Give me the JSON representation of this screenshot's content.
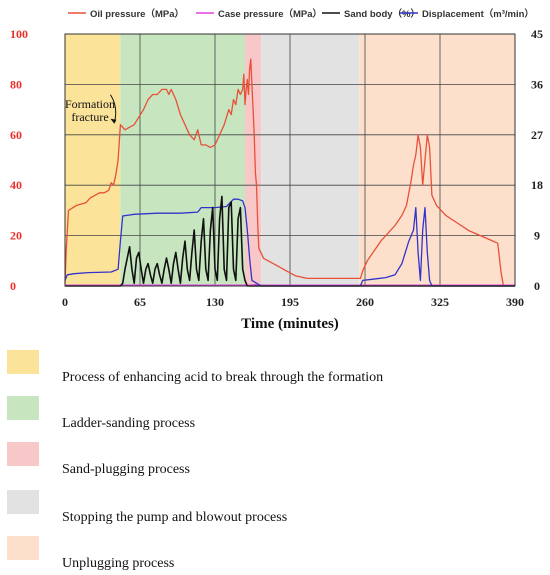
{
  "chart_data": {
    "type": "line",
    "xlabel": "Time (minutes)",
    "xlim": [
      0,
      390
    ],
    "x_ticks": [
      "0",
      "65",
      "130",
      "195",
      "260",
      "325",
      "390"
    ],
    "y_left_lim": [
      0,
      100
    ],
    "y_left_ticks": [
      "0",
      "20",
      "40",
      "60",
      "80",
      "100"
    ],
    "y_right_lim": [
      0,
      45
    ],
    "y_right_ticks": [
      "0",
      "9",
      "18",
      "27",
      "36",
      "45"
    ],
    "grid": true,
    "legend_placement": "top",
    "legend": [
      {
        "label": "Oil pressure（MPa）",
        "color": "#e8503a",
        "axis": "left"
      },
      {
        "label": "Case pressure（MPa）",
        "color": "#e040e0",
        "axis": "left"
      },
      {
        "label": "Sand body（%）",
        "color": "#111111",
        "axis": "right"
      },
      {
        "label": "Displacement（m³/min）",
        "color": "#3333cc",
        "axis": "right"
      }
    ],
    "annotation": {
      "text_lines": [
        "Formation",
        "fracture"
      ],
      "point": [
        48,
        64
      ]
    },
    "phases": [
      {
        "label": "Process of enhancing acid to break through the formation",
        "x_start": 0,
        "x_end": 48,
        "color": "#fbe49a"
      },
      {
        "label": "Ladder-sanding process",
        "x_start": 48,
        "x_end": 156,
        "color": "#c7e6c0"
      },
      {
        "label": "Sand-plugging process",
        "x_start": 156,
        "x_end": 170,
        "color": "#f8c8c8"
      },
      {
        "label": "Stopping the pump and blowout process",
        "x_start": 170,
        "x_end": 255,
        "color": "#e2e2e2"
      },
      {
        "label": "Unplugging process",
        "x_start": 255,
        "x_end": 390,
        "color": "#fde0cc"
      }
    ],
    "series": [
      {
        "name": "Oil pressure（MPa）",
        "axis": "left",
        "points": [
          [
            0,
            1
          ],
          [
            1,
            14
          ],
          [
            3,
            30
          ],
          [
            10,
            32
          ],
          [
            18,
            33
          ],
          [
            22,
            35
          ],
          [
            26,
            36
          ],
          [
            30,
            37
          ],
          [
            34,
            37
          ],
          [
            38,
            38
          ],
          [
            40,
            41
          ],
          [
            42,
            40
          ],
          [
            44,
            44
          ],
          [
            46,
            50
          ],
          [
            48,
            64
          ],
          [
            52,
            62
          ],
          [
            56,
            63
          ],
          [
            60,
            64
          ],
          [
            64,
            67
          ],
          [
            68,
            70
          ],
          [
            72,
            74
          ],
          [
            76,
            76
          ],
          [
            80,
            76
          ],
          [
            84,
            78
          ],
          [
            88,
            78
          ],
          [
            90,
            76
          ],
          [
            92,
            78
          ],
          [
            96,
            74
          ],
          [
            100,
            68
          ],
          [
            104,
            64
          ],
          [
            108,
            60
          ],
          [
            112,
            58
          ],
          [
            115,
            62
          ],
          [
            118,
            56
          ],
          [
            122,
            56
          ],
          [
            126,
            55
          ],
          [
            130,
            56
          ],
          [
            134,
            60
          ],
          [
            138,
            64
          ],
          [
            142,
            70
          ],
          [
            144,
            68
          ],
          [
            146,
            74
          ],
          [
            148,
            72
          ],
          [
            150,
            78
          ],
          [
            152,
            76
          ],
          [
            154,
            78
          ],
          [
            155,
            84
          ],
          [
            156,
            72
          ],
          [
            157,
            78
          ],
          [
            158,
            82
          ],
          [
            159,
            76
          ],
          [
            160,
            86
          ],
          [
            161,
            90
          ],
          [
            162,
            80
          ],
          [
            163,
            70
          ],
          [
            164,
            60
          ],
          [
            165,
            45
          ],
          [
            166,
            40
          ],
          [
            167,
            25
          ],
          [
            168,
            15
          ],
          [
            170,
            13
          ],
          [
            172,
            11
          ],
          [
            176,
            10
          ],
          [
            184,
            8
          ],
          [
            192,
            6
          ],
          [
            200,
            4
          ],
          [
            210,
            3
          ],
          [
            220,
            3
          ],
          [
            230,
            3
          ],
          [
            240,
            3
          ],
          [
            250,
            3
          ],
          [
            256,
            3
          ],
          [
            258,
            6
          ],
          [
            262,
            10
          ],
          [
            268,
            14
          ],
          [
            274,
            18
          ],
          [
            280,
            21
          ],
          [
            286,
            24
          ],
          [
            292,
            28
          ],
          [
            296,
            32
          ],
          [
            300,
            42
          ],
          [
            302,
            48
          ],
          [
            304,
            52
          ],
          [
            306,
            60
          ],
          [
            308,
            55
          ],
          [
            310,
            40
          ],
          [
            312,
            50
          ],
          [
            314,
            60
          ],
          [
            316,
            55
          ],
          [
            318,
            36
          ],
          [
            322,
            32
          ],
          [
            330,
            28
          ],
          [
            340,
            25
          ],
          [
            350,
            22
          ],
          [
            360,
            20
          ],
          [
            370,
            18
          ],
          [
            375,
            17
          ],
          [
            378,
            5
          ],
          [
            380,
            0
          ]
        ]
      },
      {
        "name": "Case pressure（MPa）",
        "axis": "left",
        "points": [
          [
            0,
            0.3
          ],
          [
            160,
            0.3
          ],
          [
            165,
            0.5
          ],
          [
            170,
            0.3
          ],
          [
            390,
            0.3
          ]
        ]
      },
      {
        "name": "Sand body（%）",
        "axis": "right",
        "points": [
          [
            0,
            0
          ],
          [
            48,
            0
          ],
          [
            50,
            0.5
          ],
          [
            52,
            3
          ],
          [
            54,
            5
          ],
          [
            56,
            7
          ],
          [
            58,
            3
          ],
          [
            60,
            0.5
          ],
          [
            62,
            5
          ],
          [
            64,
            6
          ],
          [
            66,
            3
          ],
          [
            68,
            0.5
          ],
          [
            70,
            3
          ],
          [
            72,
            4
          ],
          [
            74,
            2
          ],
          [
            76,
            0.5
          ],
          [
            78,
            3
          ],
          [
            80,
            4
          ],
          [
            82,
            2
          ],
          [
            84,
            0.5
          ],
          [
            86,
            3
          ],
          [
            88,
            5
          ],
          [
            90,
            3
          ],
          [
            92,
            0.5
          ],
          [
            94,
            4
          ],
          [
            96,
            6
          ],
          [
            98,
            3
          ],
          [
            100,
            0.5
          ],
          [
            102,
            5
          ],
          [
            104,
            8
          ],
          [
            106,
            3
          ],
          [
            108,
            1
          ],
          [
            110,
            6
          ],
          [
            112,
            10
          ],
          [
            114,
            3
          ],
          [
            116,
            1
          ],
          [
            118,
            8
          ],
          [
            120,
            12
          ],
          [
            122,
            3
          ],
          [
            124,
            1
          ],
          [
            126,
            10
          ],
          [
            128,
            14
          ],
          [
            130,
            3
          ],
          [
            132,
            1
          ],
          [
            134,
            12
          ],
          [
            136,
            16
          ],
          [
            138,
            3
          ],
          [
            140,
            1
          ],
          [
            142,
            14
          ],
          [
            144,
            15
          ],
          [
            146,
            3
          ],
          [
            148,
            1
          ],
          [
            150,
            12
          ],
          [
            152,
            14
          ],
          [
            154,
            3
          ],
          [
            156,
            1
          ],
          [
            158,
            0
          ],
          [
            390,
            0
          ]
        ]
      },
      {
        "name": "Displacement（m³/min）",
        "axis": "right",
        "points": [
          [
            0,
            1
          ],
          [
            2,
            2
          ],
          [
            8,
            2.2
          ],
          [
            20,
            2.4
          ],
          [
            40,
            2.5
          ],
          [
            46,
            3
          ],
          [
            48,
            8
          ],
          [
            50,
            12.5
          ],
          [
            60,
            12.8
          ],
          [
            80,
            13
          ],
          [
            100,
            13
          ],
          [
            115,
            13.2
          ],
          [
            118,
            14
          ],
          [
            130,
            14
          ],
          [
            140,
            14.2
          ],
          [
            146,
            15.5
          ],
          [
            150,
            15.5
          ],
          [
            154,
            15.2
          ],
          [
            156,
            14
          ],
          [
            158,
            10
          ],
          [
            160,
            5
          ],
          [
            162,
            1
          ],
          [
            166,
            0.5
          ],
          [
            170,
            0
          ],
          [
            250,
            0
          ],
          [
            256,
            0
          ],
          [
            258,
            1
          ],
          [
            266,
            1.2
          ],
          [
            278,
            1.5
          ],
          [
            286,
            2
          ],
          [
            292,
            4
          ],
          [
            298,
            8
          ],
          [
            302,
            10
          ],
          [
            304,
            14
          ],
          [
            306,
            6
          ],
          [
            308,
            1
          ],
          [
            310,
            10
          ],
          [
            312,
            14
          ],
          [
            314,
            6
          ],
          [
            316,
            1
          ],
          [
            318,
            0
          ],
          [
            390,
            0
          ]
        ]
      }
    ]
  }
}
